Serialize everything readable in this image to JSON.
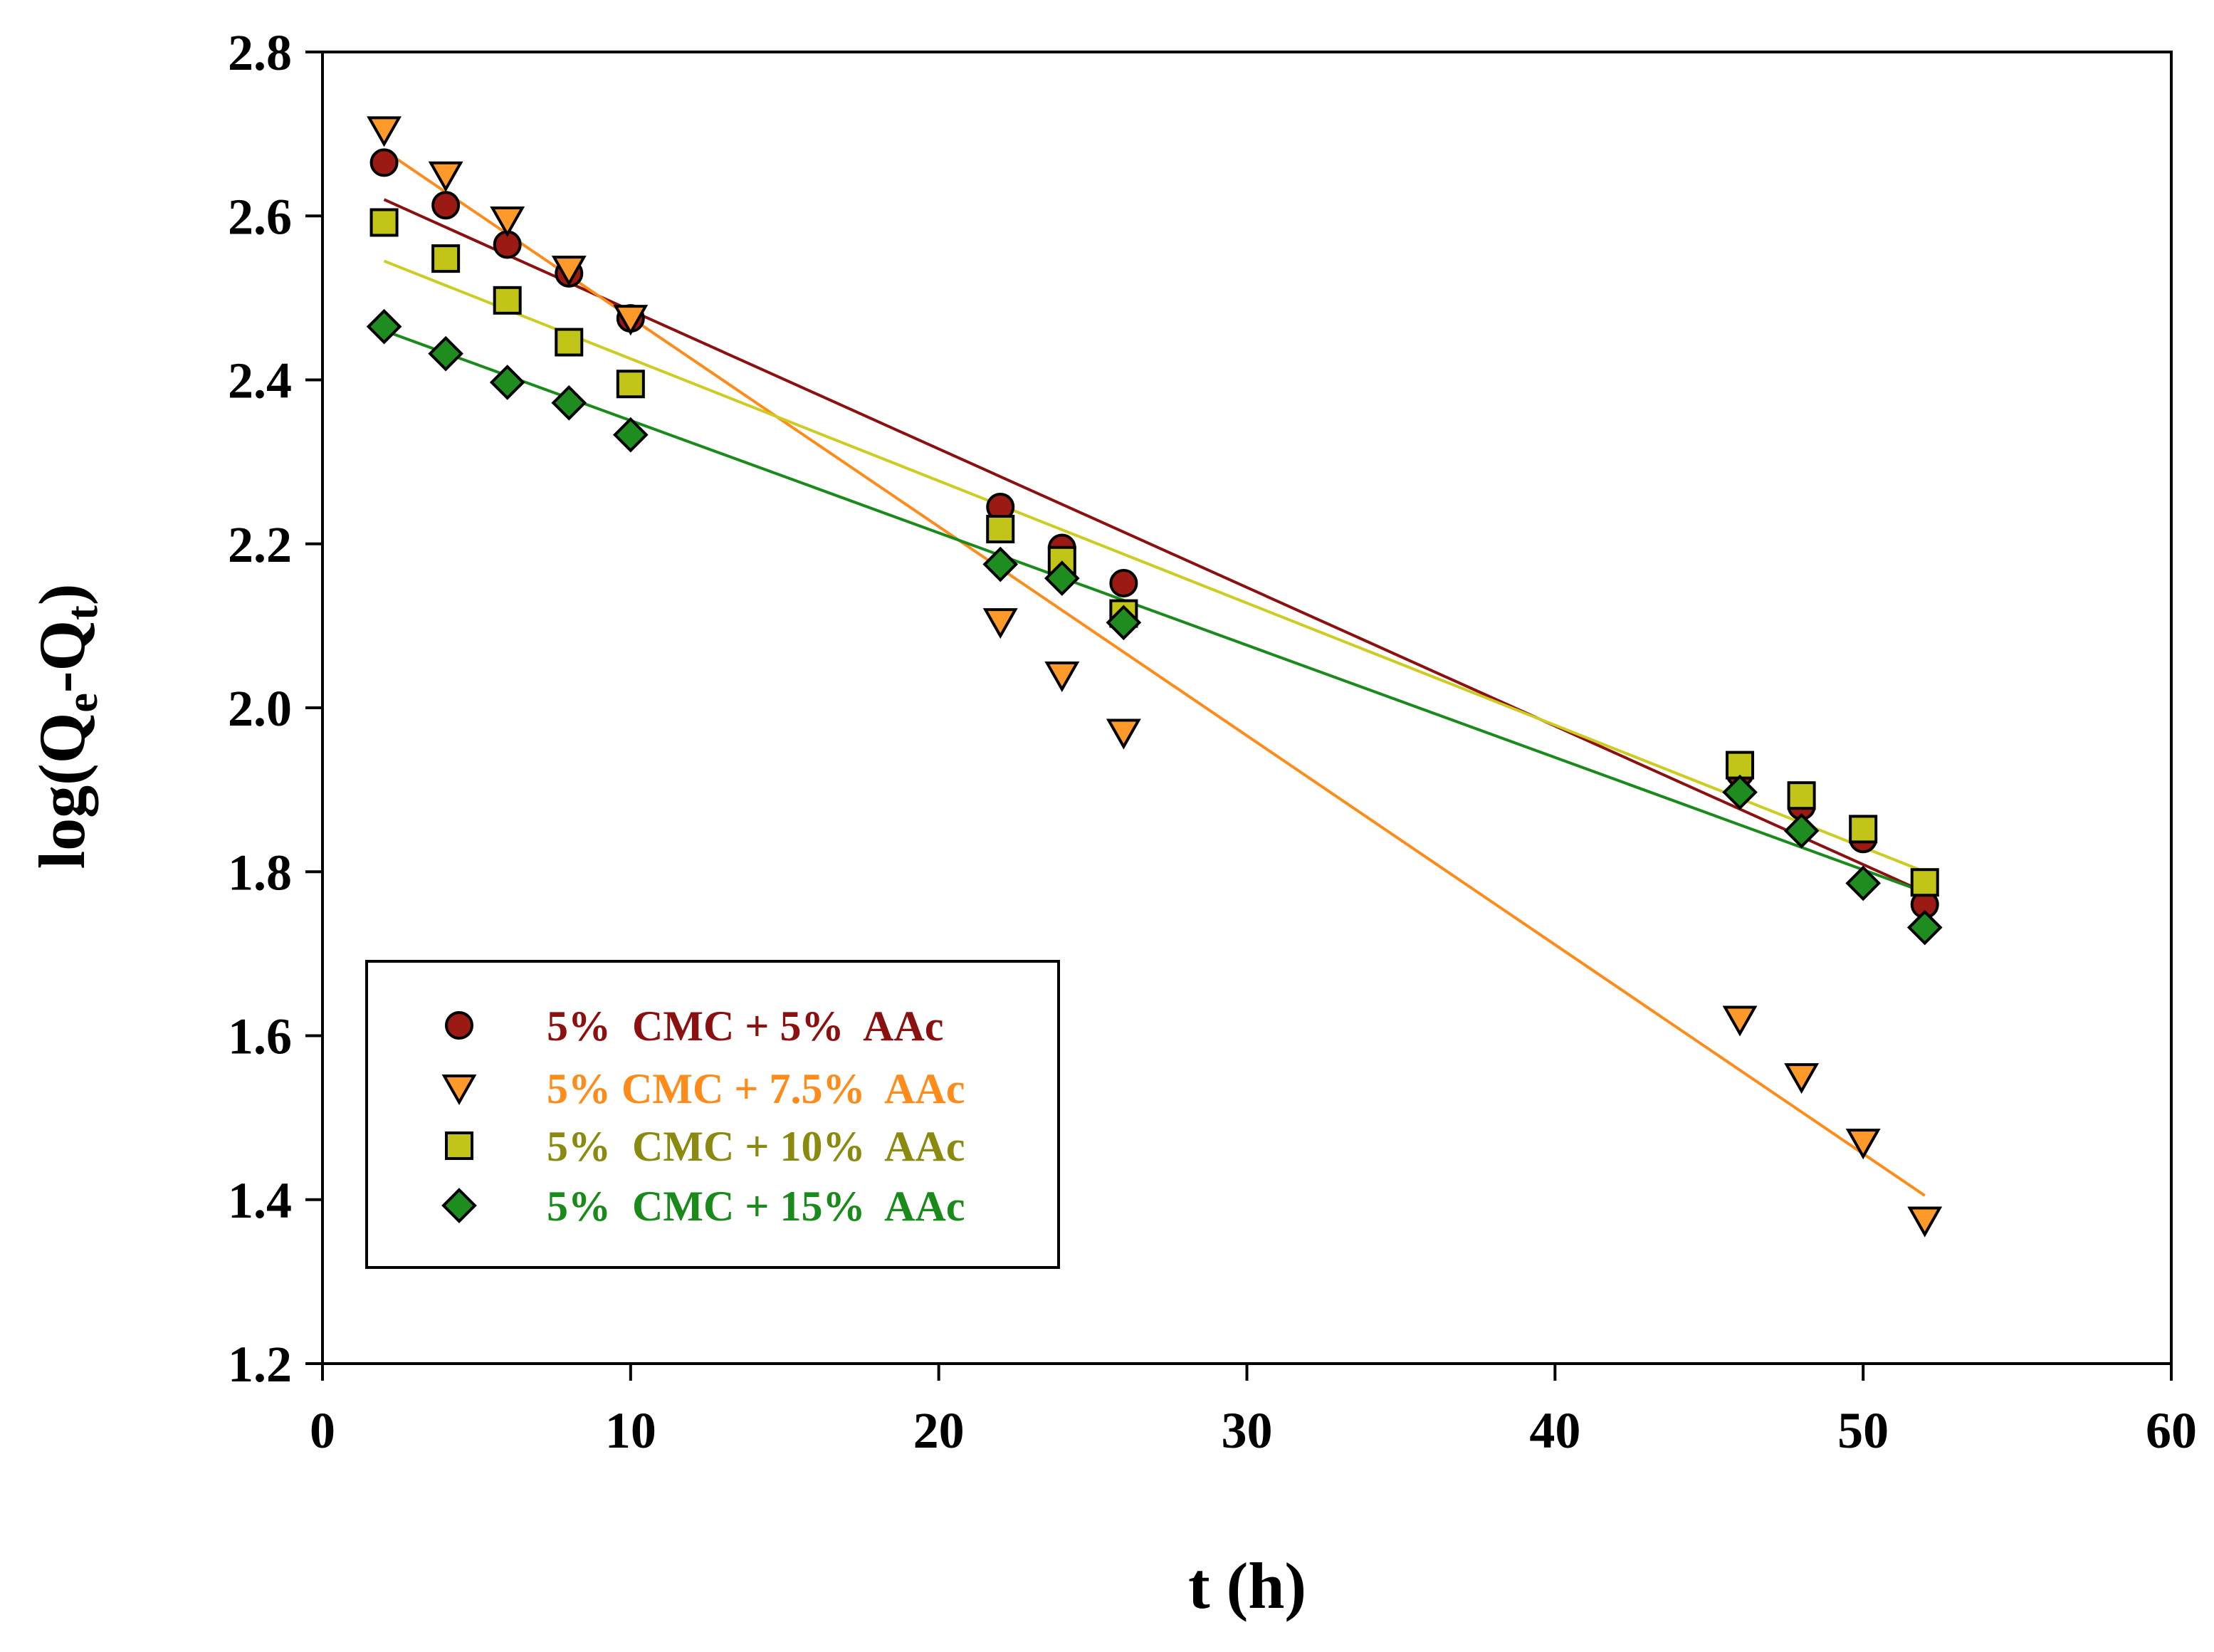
{
  "chart_data": {
    "type": "scatter",
    "title": "",
    "xlabel": "t (h)",
    "ylabel": {
      "prefix": "log(Q",
      "sub1": "e",
      "mid": "-Q",
      "sub2": "t",
      "suffix": ")"
    },
    "xlim": [
      0,
      60
    ],
    "ylim": [
      1.2,
      2.8
    ],
    "xticks": [
      "0",
      "10",
      "20",
      "30",
      "40",
      "50",
      "60"
    ],
    "yticks": [
      "1.2",
      "1.4",
      "1.6",
      "1.8",
      "2.0",
      "2.2",
      "2.4",
      "2.6",
      "2.8"
    ],
    "grid": false,
    "legend_position": "bottom-left",
    "series": [
      {
        "name": "5%  CMC + 5%  AAc",
        "marker": "circle",
        "fill": "#9c1a14",
        "text_color": "#8b1010",
        "line_color": "#8b1010",
        "x": [
          2,
          4,
          6,
          8,
          10,
          22,
          24,
          26,
          46,
          48,
          50,
          52
        ],
        "y": [
          2.665,
          2.613,
          2.565,
          2.53,
          2.475,
          2.245,
          2.195,
          2.152,
          1.92,
          1.88,
          1.84,
          1.76
        ],
        "fit": {
          "x": [
            2,
            52
          ],
          "y": [
            2.62,
            1.775
          ]
        }
      },
      {
        "name": "5% CMC + 7.5%  AAc",
        "marker": "triangle-down",
        "fill": "#ff9a2a",
        "text_color": "#ff8c1a",
        "line_color": "#ff8c1a",
        "x": [
          2,
          4,
          6,
          8,
          10,
          22,
          24,
          26,
          46,
          48,
          50,
          52
        ],
        "y": [
          2.705,
          2.65,
          2.595,
          2.535,
          2.475,
          2.105,
          2.04,
          1.97,
          1.62,
          1.55,
          1.47,
          1.375
        ],
        "fit": {
          "x": [
            2,
            52
          ],
          "y": [
            2.68,
            1.405
          ]
        }
      },
      {
        "name": "5%  CMC + 10%  AAc",
        "marker": "square",
        "fill": "#c3c418",
        "text_color": "#8a8a10",
        "line_color": "#cccc22",
        "x": [
          2,
          4,
          6,
          8,
          10,
          22,
          24,
          26,
          46,
          48,
          50,
          52
        ],
        "y": [
          2.592,
          2.548,
          2.497,
          2.446,
          2.395,
          2.218,
          2.18,
          2.115,
          1.93,
          1.893,
          1.852,
          1.787
        ],
        "fit": {
          "x": [
            2,
            52
          ],
          "y": [
            2.545,
            1.8
          ]
        }
      },
      {
        "name": "5%  CMC + 15%  AAc",
        "marker": "diamond",
        "fill": "#1f8c1f",
        "text_color": "#1a8a1a",
        "line_color": "#1a8a1a",
        "x": [
          2,
          4,
          6,
          8,
          10,
          22,
          24,
          26,
          46,
          48,
          50,
          52
        ],
        "y": [
          2.465,
          2.432,
          2.397,
          2.372,
          2.333,
          2.175,
          2.158,
          2.104,
          1.897,
          1.85,
          1.786,
          1.732
        ],
        "fit": {
          "x": [
            2,
            52
          ],
          "y": [
            2.46,
            1.775
          ]
        }
      }
    ]
  }
}
